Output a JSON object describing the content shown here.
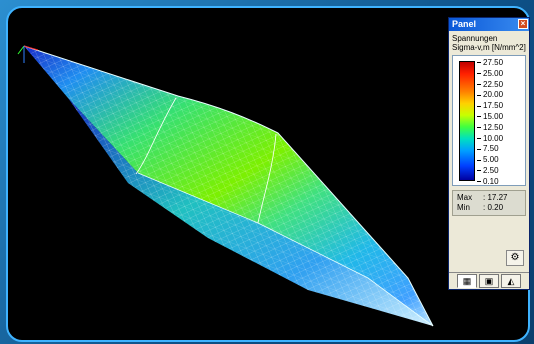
{
  "panel": {
    "title": "Panel",
    "close_glyph": "×",
    "legend": {
      "heading_line1": "Spannungen",
      "heading_line2": "Sigma-v,m [N/mm^2]",
      "ticks": [
        "27.50",
        "25.00",
        "22.50",
        "20.00",
        "17.50",
        "15.00",
        "12.50",
        "10.00",
        "7.50",
        "5.00",
        "2.50",
        "0.10"
      ]
    },
    "stats": {
      "max_label": "Max",
      "max_value": "17.27",
      "min_label": "Min",
      "min_value": "0.20"
    },
    "settings_icon": "palette-settings-icon",
    "tabs": [
      {
        "name": "color-legend-tab-icon",
        "glyph": "▦"
      },
      {
        "name": "display-tab-icon",
        "glyph": "▣"
      },
      {
        "name": "view-tab-icon",
        "glyph": "◭"
      }
    ]
  }
}
